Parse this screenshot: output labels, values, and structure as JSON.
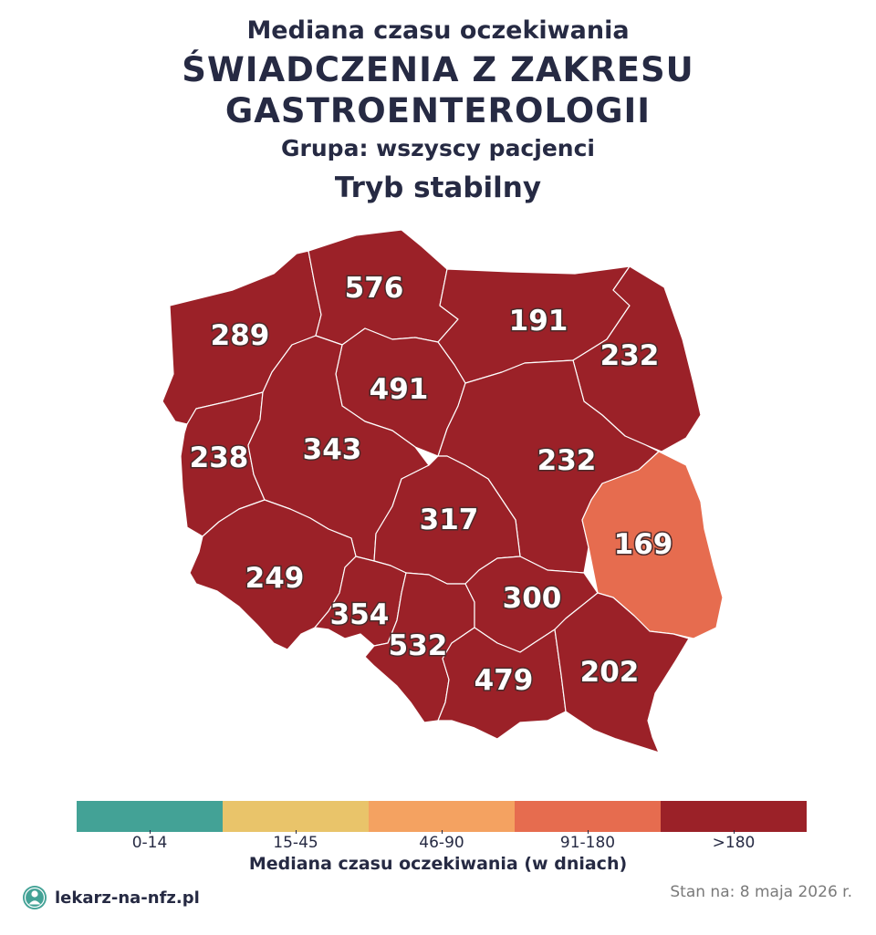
{
  "header": {
    "pretitle": "Mediana czasu oczekiwania",
    "title_line1": "ŚWIADCZENIA Z ZAKRESU",
    "title_line2": "GASTROENTEROLOGII",
    "group": "Grupa: wszyscy pacjenci",
    "mode": "Tryb stabilny"
  },
  "regions": [
    {
      "id": "zachodniopomorskie",
      "value": "289",
      "color": "#9b2128"
    },
    {
      "id": "pomorskie",
      "value": "576",
      "color": "#9b2128"
    },
    {
      "id": "warminsko-mazurskie",
      "value": "191",
      "color": "#9b2128"
    },
    {
      "id": "podlaskie",
      "value": "232",
      "color": "#9b2128"
    },
    {
      "id": "kujawsko-pomorskie",
      "value": "491",
      "color": "#9b2128"
    },
    {
      "id": "lubuskie",
      "value": "238",
      "color": "#9b2128"
    },
    {
      "id": "wielkopolskie",
      "value": "343",
      "color": "#9b2128"
    },
    {
      "id": "mazowieckie",
      "value": "232",
      "color": "#9b2128"
    },
    {
      "id": "lodzkie",
      "value": "317",
      "color": "#9b2128"
    },
    {
      "id": "lubelskie",
      "value": "169",
      "color": "#e66c4f"
    },
    {
      "id": "dolnoslaskie",
      "value": "249",
      "color": "#9b2128"
    },
    {
      "id": "opolskie",
      "value": "354",
      "color": "#9b2128"
    },
    {
      "id": "slaskie",
      "value": "532",
      "color": "#9b2128"
    },
    {
      "id": "swietokrzyskie",
      "value": "300",
      "color": "#9b2128"
    },
    {
      "id": "malopolskie",
      "value": "479",
      "color": "#9b2128"
    },
    {
      "id": "podkarpackie",
      "value": "202",
      "color": "#9b2128"
    }
  ],
  "legend": {
    "title": "Mediana czasu oczekiwania (w dniach)",
    "bins": [
      {
        "label": "0-14",
        "color": "#43a296"
      },
      {
        "label": "15-45",
        "color": "#e9c46a"
      },
      {
        "label": "46-90",
        "color": "#f4a261"
      },
      {
        "label": "91-180",
        "color": "#e66c4f"
      },
      {
        "label": ">180",
        "color": "#9b2128"
      }
    ]
  },
  "footer": {
    "logo_text": "lekarz-na-nfz.pl",
    "logo_icon": "doctor-icon",
    "stan": "Stan na: 8 maja 2026 r."
  }
}
